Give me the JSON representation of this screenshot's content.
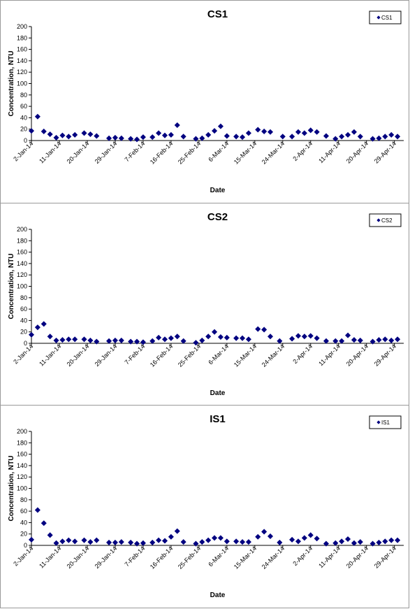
{
  "chart_data": [
    {
      "type": "scatter",
      "title": "CS1",
      "xlabel": "Date",
      "ylabel": "Concentration, NTU",
      "ylim": [
        0,
        200
      ],
      "yticks": [
        "0",
        "20",
        "40",
        "60",
        "80",
        "100",
        "120",
        "140",
        "160",
        "180",
        "200"
      ],
      "x_tick_labels": [
        "2-Jan-14",
        "11-Jan-14",
        "20-Jan-14",
        "29-Jan-14",
        "7-Feb-14",
        "16-Feb-14",
        "25-Feb-14",
        "6-Mar-14",
        "15-Mar-14",
        "24-Mar-14",
        "2-Apr-14",
        "11-Apr-14",
        "20-Apr-14",
        "29-Apr-14"
      ],
      "xlim": [
        "2014-01-02",
        "2014-05-02"
      ],
      "marker_color": "#000080",
      "legend": {
        "position": "top-right"
      },
      "series": [
        {
          "name": "CS1",
          "points": [
            [
              "2014-01-02",
              17
            ],
            [
              "2014-01-04",
              42
            ],
            [
              "2014-01-06",
              16
            ],
            [
              "2014-01-08",
              11
            ],
            [
              "2014-01-10",
              5
            ],
            [
              "2014-01-12",
              9
            ],
            [
              "2014-01-14",
              7
            ],
            [
              "2014-01-16",
              10
            ],
            [
              "2014-01-19",
              13
            ],
            [
              "2014-01-21",
              11
            ],
            [
              "2014-01-23",
              8
            ],
            [
              "2014-01-27",
              4
            ],
            [
              "2014-01-29",
              5
            ],
            [
              "2014-01-31",
              4
            ],
            [
              "2014-02-03",
              3
            ],
            [
              "2014-02-05",
              2
            ],
            [
              "2014-02-07",
              6
            ],
            [
              "2014-02-10",
              6
            ],
            [
              "2014-02-12",
              13
            ],
            [
              "2014-02-14",
              9
            ],
            [
              "2014-02-16",
              10
            ],
            [
              "2014-02-18",
              27
            ],
            [
              "2014-02-20",
              7
            ],
            [
              "2014-02-24",
              3
            ],
            [
              "2014-02-26",
              4
            ],
            [
              "2014-02-28",
              10
            ],
            [
              "2014-03-02",
              17
            ],
            [
              "2014-03-04",
              25
            ],
            [
              "2014-03-06",
              8
            ],
            [
              "2014-03-09",
              7
            ],
            [
              "2014-03-11",
              6
            ],
            [
              "2014-03-13",
              13
            ],
            [
              "2014-03-16",
              19
            ],
            [
              "2014-03-18",
              16
            ],
            [
              "2014-03-20",
              15
            ],
            [
              "2014-03-24",
              7
            ],
            [
              "2014-03-27",
              7
            ],
            [
              "2014-03-29",
              15
            ],
            [
              "2014-03-31",
              13
            ],
            [
              "2014-04-02",
              18
            ],
            [
              "2014-04-04",
              15
            ],
            [
              "2014-04-07",
              8
            ],
            [
              "2014-04-10",
              3
            ],
            [
              "2014-04-12",
              7
            ],
            [
              "2014-04-14",
              10
            ],
            [
              "2014-04-16",
              15
            ],
            [
              "2014-04-18",
              7
            ],
            [
              "2014-04-22",
              3
            ],
            [
              "2014-04-24",
              4
            ],
            [
              "2014-04-26",
              7
            ],
            [
              "2014-04-28",
              10
            ],
            [
              "2014-04-30",
              7
            ]
          ]
        }
      ]
    },
    {
      "type": "scatter",
      "title": "CS2",
      "xlabel": "Date",
      "ylabel": "Concentration, NTU",
      "ylim": [
        0,
        200
      ],
      "yticks": [
        "0",
        "20",
        "40",
        "60",
        "80",
        "100",
        "120",
        "140",
        "160",
        "180",
        "200"
      ],
      "x_tick_labels": [
        "2-Jan-14",
        "11-Jan-14",
        "20-Jan-14",
        "29-Jan-14",
        "7-Feb-14",
        "16-Feb-14",
        "25-Feb-14",
        "6-Mar-14",
        "15-Mar-14",
        "24-Mar-14",
        "2-Apr-14",
        "11-Apr-14",
        "20-Apr-14",
        "29-Apr-14"
      ],
      "xlim": [
        "2014-01-02",
        "2014-05-02"
      ],
      "marker_color": "#000080",
      "legend": {
        "position": "top-right"
      },
      "series": [
        {
          "name": "CS2",
          "points": [
            [
              "2014-01-02",
              15
            ],
            [
              "2014-01-04",
              28
            ],
            [
              "2014-01-06",
              34
            ],
            [
              "2014-01-08",
              12
            ],
            [
              "2014-01-10",
              5
            ],
            [
              "2014-01-12",
              6
            ],
            [
              "2014-01-14",
              7
            ],
            [
              "2014-01-16",
              7
            ],
            [
              "2014-01-19",
              7
            ],
            [
              "2014-01-21",
              5
            ],
            [
              "2014-01-23",
              3
            ],
            [
              "2014-01-27",
              4
            ],
            [
              "2014-01-29",
              5
            ],
            [
              "2014-01-31",
              5
            ],
            [
              "2014-02-03",
              3
            ],
            [
              "2014-02-05",
              3
            ],
            [
              "2014-02-07",
              2
            ],
            [
              "2014-02-10",
              4
            ],
            [
              "2014-02-12",
              10
            ],
            [
              "2014-02-14",
              7
            ],
            [
              "2014-02-16",
              9
            ],
            [
              "2014-02-18",
              12
            ],
            [
              "2014-02-20",
              4
            ],
            [
              "2014-02-24",
              1
            ],
            [
              "2014-02-26",
              5
            ],
            [
              "2014-02-28",
              12
            ],
            [
              "2014-03-02",
              20
            ],
            [
              "2014-03-04",
              11
            ],
            [
              "2014-03-06",
              10
            ],
            [
              "2014-03-09",
              9
            ],
            [
              "2014-03-11",
              9
            ],
            [
              "2014-03-13",
              7
            ],
            [
              "2014-03-16",
              25
            ],
            [
              "2014-03-18",
              24
            ],
            [
              "2014-03-20",
              12
            ],
            [
              "2014-03-23",
              4
            ],
            [
              "2014-03-27",
              8
            ],
            [
              "2014-03-29",
              13
            ],
            [
              "2014-03-31",
              12
            ],
            [
              "2014-04-02",
              13
            ],
            [
              "2014-04-04",
              9
            ],
            [
              "2014-04-07",
              4
            ],
            [
              "2014-04-10",
              4
            ],
            [
              "2014-04-12",
              4
            ],
            [
              "2014-04-14",
              14
            ],
            [
              "2014-04-16",
              6
            ],
            [
              "2014-04-18",
              5
            ],
            [
              "2014-04-22",
              3
            ],
            [
              "2014-04-24",
              6
            ],
            [
              "2014-04-26",
              7
            ],
            [
              "2014-04-28",
              5
            ],
            [
              "2014-04-30",
              7
            ]
          ]
        }
      ]
    },
    {
      "type": "scatter",
      "title": "IS1",
      "xlabel": "Date",
      "ylabel": "Concentration, NTU",
      "ylim": [
        0,
        200
      ],
      "yticks": [
        "0",
        "20",
        "40",
        "60",
        "80",
        "100",
        "120",
        "140",
        "160",
        "180",
        "200"
      ],
      "x_tick_labels": [
        "2-Jan-14",
        "11-Jan-14",
        "20-Jan-14",
        "29-Jan-14",
        "7-Feb-14",
        "16-Feb-14",
        "25-Feb-14",
        "6-Mar-14",
        "15-Mar-14",
        "24-Mar-14",
        "2-Apr-14",
        "11-Apr-14",
        "20-Apr-14",
        "29-Apr-14"
      ],
      "xlim": [
        "2014-01-02",
        "2014-05-02"
      ],
      "marker_color": "#000080",
      "legend": {
        "position": "top-right"
      },
      "series": [
        {
          "name": "IS1",
          "points": [
            [
              "2014-01-02",
              10
            ],
            [
              "2014-01-04",
              62
            ],
            [
              "2014-01-06",
              39
            ],
            [
              "2014-01-08",
              18
            ],
            [
              "2014-01-10",
              4
            ],
            [
              "2014-01-12",
              7
            ],
            [
              "2014-01-14",
              9
            ],
            [
              "2014-01-16",
              7
            ],
            [
              "2014-01-19",
              9
            ],
            [
              "2014-01-21",
              6
            ],
            [
              "2014-01-23",
              9
            ],
            [
              "2014-01-27",
              5
            ],
            [
              "2014-01-29",
              5
            ],
            [
              "2014-01-31",
              6
            ],
            [
              "2014-02-03",
              5
            ],
            [
              "2014-02-05",
              3
            ],
            [
              "2014-02-07",
              4
            ],
            [
              "2014-02-10",
              5
            ],
            [
              "2014-02-12",
              9
            ],
            [
              "2014-02-14",
              8
            ],
            [
              "2014-02-16",
              15
            ],
            [
              "2014-02-18",
              25
            ],
            [
              "2014-02-20",
              6
            ],
            [
              "2014-02-24",
              3
            ],
            [
              "2014-02-26",
              6
            ],
            [
              "2014-02-28",
              9
            ],
            [
              "2014-03-02",
              13
            ],
            [
              "2014-03-04",
              13
            ],
            [
              "2014-03-06",
              7
            ],
            [
              "2014-03-09",
              7
            ],
            [
              "2014-03-11",
              6
            ],
            [
              "2014-03-13",
              6
            ],
            [
              "2014-03-16",
              15
            ],
            [
              "2014-03-18",
              24
            ],
            [
              "2014-03-20",
              16
            ],
            [
              "2014-03-23",
              5
            ],
            [
              "2014-03-27",
              10
            ],
            [
              "2014-03-29",
              7
            ],
            [
              "2014-03-31",
              13
            ],
            [
              "2014-04-02",
              18
            ],
            [
              "2014-04-04",
              12
            ],
            [
              "2014-04-07",
              3
            ],
            [
              "2014-04-10",
              4
            ],
            [
              "2014-04-12",
              7
            ],
            [
              "2014-04-14",
              11
            ],
            [
              "2014-04-16",
              4
            ],
            [
              "2014-04-18",
              6
            ],
            [
              "2014-04-22",
              3
            ],
            [
              "2014-04-24",
              5
            ],
            [
              "2014-04-26",
              7
            ],
            [
              "2014-04-28",
              9
            ],
            [
              "2014-04-30",
              9
            ]
          ]
        }
      ]
    }
  ]
}
